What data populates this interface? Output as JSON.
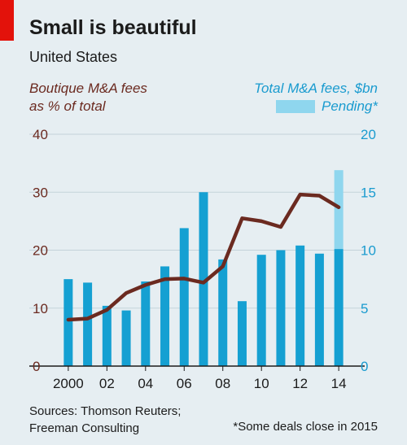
{
  "header": {
    "title": "Small is beautiful",
    "subtitle": "United States"
  },
  "legend": {
    "line_label": [
      "Boutique M&A fees",
      "as % of total"
    ],
    "bar_label": "Total M&A fees, $bn",
    "pending_label": "Pending*"
  },
  "footer": {
    "source": [
      "Sources: Thomson Reuters;",
      "Freeman Consulting"
    ],
    "footnote": "*Some deals close in 2015"
  },
  "colors": {
    "background": "#e6eef2",
    "bar": "#15a0d2",
    "pending": "#8fd6ee",
    "line": "#6b2a20",
    "left_axis_text": "#6b2a20",
    "right_axis_text": "#1a9bcf",
    "brand": "#e3120b"
  },
  "chart_data": {
    "type": "bar",
    "categories": [
      "2000",
      "2001",
      "2002",
      "2003",
      "2004",
      "2005",
      "2006",
      "2007",
      "2008",
      "2009",
      "2010",
      "2011",
      "2012",
      "2013",
      "2014"
    ],
    "x_tick_labels": [
      "2000",
      "",
      "02",
      "",
      "04",
      "",
      "06",
      "",
      "08",
      "",
      "10",
      "",
      "12",
      "",
      "14"
    ],
    "series": [
      {
        "name": "Total M&A fees, $bn",
        "axis": "right",
        "type": "bar",
        "values": [
          7.5,
          7.2,
          5.2,
          4.8,
          7.3,
          8.6,
          11.9,
          15.0,
          9.2,
          5.6,
          9.6,
          10.0,
          10.4,
          9.7,
          10.1
        ]
      },
      {
        "name": "Pending*",
        "axis": "right",
        "type": "bar-stack",
        "values": [
          0,
          0,
          0,
          0,
          0,
          0,
          0,
          0,
          0,
          0,
          0,
          0,
          0,
          0,
          6.8
        ]
      },
      {
        "name": "Boutique M&A fees as % of total",
        "axis": "left",
        "type": "line",
        "values": [
          8.0,
          8.2,
          9.7,
          12.6,
          14.0,
          15.0,
          15.1,
          14.4,
          17.2,
          25.5,
          25.0,
          24.0,
          29.6,
          29.4,
          27.4
        ]
      }
    ],
    "y_left": {
      "ylim": [
        0,
        40
      ],
      "ticks": [
        "0",
        "10",
        "20",
        "30",
        "40"
      ]
    },
    "y_right": {
      "ylim": [
        0,
        20
      ],
      "ticks": [
        "0",
        "5",
        "10",
        "15",
        "20"
      ]
    },
    "grid": true
  }
}
